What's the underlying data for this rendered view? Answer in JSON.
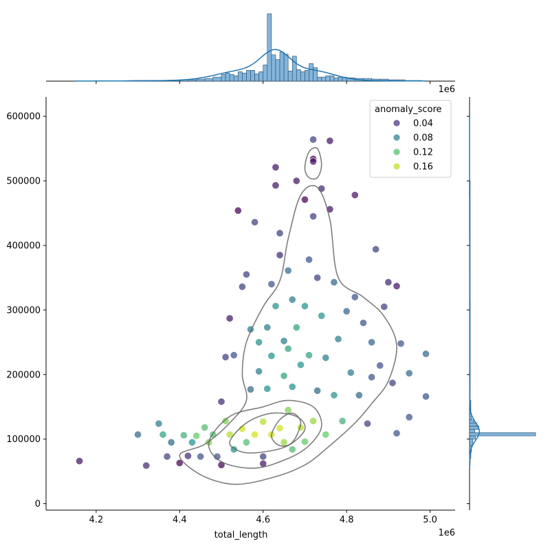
{
  "chart_data": {
    "type": "scatter",
    "title": "",
    "xlabel": "total_length",
    "ylabel": "",
    "x_offset_label": "1e6",
    "xlim": [
      4.08,
      5.06
    ],
    "ylim": [
      -10000,
      630000
    ],
    "x_ticks": [
      4.2,
      4.4,
      4.6,
      4.8,
      5.0
    ],
    "x_tick_labels": [
      "4.2",
      "4.4",
      "4.6",
      "4.8",
      "5.0"
    ],
    "y_ticks": [
      0,
      100000,
      200000,
      300000,
      400000,
      500000,
      600000
    ],
    "y_tick_labels": [
      "0",
      "100000",
      "200000",
      "300000",
      "400000",
      "500000",
      "600000"
    ],
    "grid": false,
    "legend": {
      "title": "anomaly_score",
      "placement": "top-right",
      "entries": [
        {
          "label": "0.04",
          "color": "#46327e"
        },
        {
          "label": "0.08",
          "color": "#277f8e"
        },
        {
          "label": "0.12",
          "color": "#4ac16d"
        },
        {
          "label": "0.16",
          "color": "#bddf26"
        }
      ]
    },
    "colors": {
      "kde_line": "#1f77b4",
      "hist_fill": "#6fa8d6",
      "contour": "#666666"
    },
    "points": [
      [
        4.16,
        66000,
        0.03
      ],
      [
        4.32,
        59000,
        0.04
      ],
      [
        4.3,
        107000,
        0.07
      ],
      [
        4.35,
        124000,
        0.08
      ],
      [
        4.36,
        107000,
        0.1
      ],
      [
        4.38,
        95000,
        0.07
      ],
      [
        4.37,
        73000,
        0.05
      ],
      [
        4.4,
        63000,
        0.02
      ],
      [
        4.41,
        106000,
        0.11
      ],
      [
        4.42,
        74000,
        0.04
      ],
      [
        4.43,
        95000,
        0.09
      ],
      [
        4.44,
        105000,
        0.13
      ],
      [
        4.45,
        73000,
        0.06
      ],
      [
        4.46,
        118000,
        0.12
      ],
      [
        4.47,
        95000,
        0.14
      ],
      [
        4.48,
        107000,
        0.12
      ],
      [
        4.49,
        73000,
        0.06
      ],
      [
        4.5,
        60000,
        0.02
      ],
      [
        4.5,
        158000,
        0.04
      ],
      [
        4.51,
        227000,
        0.05
      ],
      [
        4.51,
        128000,
        0.14
      ],
      [
        4.52,
        107000,
        0.16
      ],
      [
        4.53,
        84000,
        0.09
      ],
      [
        4.53,
        230000,
        0.06
      ],
      [
        4.52,
        287000,
        0.03
      ],
      [
        4.54,
        454000,
        0.02
      ],
      [
        4.55,
        116000,
        0.17
      ],
      [
        4.55,
        336000,
        0.05
      ],
      [
        4.56,
        95000,
        0.12
      ],
      [
        4.56,
        355000,
        0.05
      ],
      [
        4.57,
        177000,
        0.07
      ],
      [
        4.57,
        270000,
        0.08
      ],
      [
        4.58,
        107000,
        0.17
      ],
      [
        4.58,
        436000,
        0.05
      ],
      [
        4.59,
        205000,
        0.08
      ],
      [
        4.59,
        250000,
        0.09
      ],
      [
        4.6,
        127000,
        0.16
      ],
      [
        4.6,
        73000,
        0.05
      ],
      [
        4.6,
        62000,
        0.03
      ],
      [
        4.61,
        178000,
        0.09
      ],
      [
        4.61,
        273000,
        0.08
      ],
      [
        4.62,
        107000,
        0.17
      ],
      [
        4.62,
        340000,
        0.06
      ],
      [
        4.62,
        229000,
        0.09
      ],
      [
        4.63,
        521000,
        0.03
      ],
      [
        4.63,
        493000,
        0.03
      ],
      [
        4.63,
        306000,
        0.09
      ],
      [
        4.64,
        117000,
        0.17
      ],
      [
        4.64,
        385000,
        0.04
      ],
      [
        4.64,
        419000,
        0.05
      ],
      [
        4.65,
        252000,
        0.08
      ],
      [
        4.65,
        198000,
        0.1
      ],
      [
        4.65,
        95000,
        0.15
      ],
      [
        4.66,
        361000,
        0.07
      ],
      [
        4.66,
        240000,
        0.1
      ],
      [
        4.66,
        145000,
        0.14
      ],
      [
        4.67,
        84000,
        0.12
      ],
      [
        4.67,
        316000,
        0.08
      ],
      [
        4.67,
        181000,
        0.09
      ],
      [
        4.68,
        500000,
        0.03
      ],
      [
        4.68,
        273000,
        0.1
      ],
      [
        4.69,
        118000,
        0.16
      ],
      [
        4.69,
        215000,
        0.09
      ],
      [
        4.7,
        306000,
        0.09
      ],
      [
        4.7,
        471000,
        0.02
      ],
      [
        4.7,
        96000,
        0.13
      ],
      [
        4.71,
        378000,
        0.06
      ],
      [
        4.71,
        230000,
        0.1
      ],
      [
        4.72,
        534000,
        0.02
      ],
      [
        4.72,
        530000,
        0.03
      ],
      [
        4.72,
        445000,
        0.05
      ],
      [
        4.72,
        564000,
        0.05
      ],
      [
        4.72,
        128000,
        0.15
      ],
      [
        4.73,
        350000,
        0.05
      ],
      [
        4.73,
        175000,
        0.07
      ],
      [
        4.74,
        488000,
        0.04
      ],
      [
        4.74,
        291000,
        0.09
      ],
      [
        4.75,
        107000,
        0.13
      ],
      [
        4.75,
        226000,
        0.08
      ],
      [
        4.76,
        562000,
        0.03
      ],
      [
        4.76,
        456000,
        0.03
      ],
      [
        4.77,
        343000,
        0.07
      ],
      [
        4.77,
        168000,
        0.09
      ],
      [
        4.78,
        255000,
        0.08
      ],
      [
        4.79,
        128000,
        0.11
      ],
      [
        4.8,
        298000,
        0.07
      ],
      [
        4.81,
        203000,
        0.08
      ],
      [
        4.82,
        478000,
        0.03
      ],
      [
        4.82,
        320000,
        0.06
      ],
      [
        4.83,
        168000,
        0.07
      ],
      [
        4.84,
        280000,
        0.06
      ],
      [
        4.85,
        124000,
        0.05
      ],
      [
        4.86,
        196000,
        0.06
      ],
      [
        4.86,
        250000,
        0.07
      ],
      [
        4.87,
        394000,
        0.05
      ],
      [
        4.88,
        214000,
        0.06
      ],
      [
        4.89,
        305000,
        0.05
      ],
      [
        4.9,
        343000,
        0.04
      ],
      [
        4.91,
        187000,
        0.05
      ],
      [
        4.92,
        337000,
        0.03
      ],
      [
        4.92,
        109000,
        0.06
      ],
      [
        4.93,
        248000,
        0.06
      ],
      [
        4.95,
        134000,
        0.06
      ],
      [
        4.95,
        202000,
        0.07
      ],
      [
        4.99,
        166000,
        0.06
      ],
      [
        4.99,
        232000,
        0.07
      ]
    ],
    "x_histogram": {
      "bins": [
        4.18,
        4.2,
        4.22,
        4.24,
        4.26,
        4.28,
        4.3,
        4.32,
        4.34,
        4.36,
        4.38,
        4.4,
        4.42,
        4.44,
        4.46,
        4.48,
        4.5,
        4.51,
        4.52,
        4.53,
        4.54,
        4.55,
        4.56,
        4.57,
        4.58,
        4.59,
        4.6,
        4.61,
        4.62,
        4.63,
        4.64,
        4.65,
        4.66,
        4.67,
        4.68,
        4.69,
        4.7,
        4.71,
        4.72,
        4.73,
        4.74,
        4.75,
        4.76,
        4.77,
        4.78,
        4.79,
        4.8,
        4.82,
        4.84,
        4.86,
        4.88,
        4.9,
        4.92,
        4.94,
        4.96,
        4.98
      ],
      "counts": [
        0,
        0,
        0,
        0,
        0,
        1,
        1,
        1,
        1,
        1,
        1,
        2,
        2,
        3,
        4,
        6,
        10,
        12,
        10,
        8,
        14,
        12,
        16,
        16,
        11,
        14,
        24,
        100,
        39,
        32,
        43,
        40,
        15,
        37,
        17,
        14,
        16,
        26,
        20,
        6,
        6,
        8,
        8,
        5,
        6,
        6,
        5,
        4,
        4,
        3,
        3,
        2,
        2,
        1,
        1,
        0
      ]
    },
    "y_histogram": {
      "bins": [
        60000,
        70000,
        80000,
        90000,
        100000,
        105000,
        110000,
        115000,
        120000,
        125000,
        130000,
        140000,
        160000,
        200000,
        300000,
        400000,
        500000
      ],
      "counts": [
        1,
        2,
        3,
        5,
        9,
        100,
        8,
        14,
        11,
        7,
        3,
        2,
        1,
        1,
        1,
        1,
        0
      ]
    }
  }
}
